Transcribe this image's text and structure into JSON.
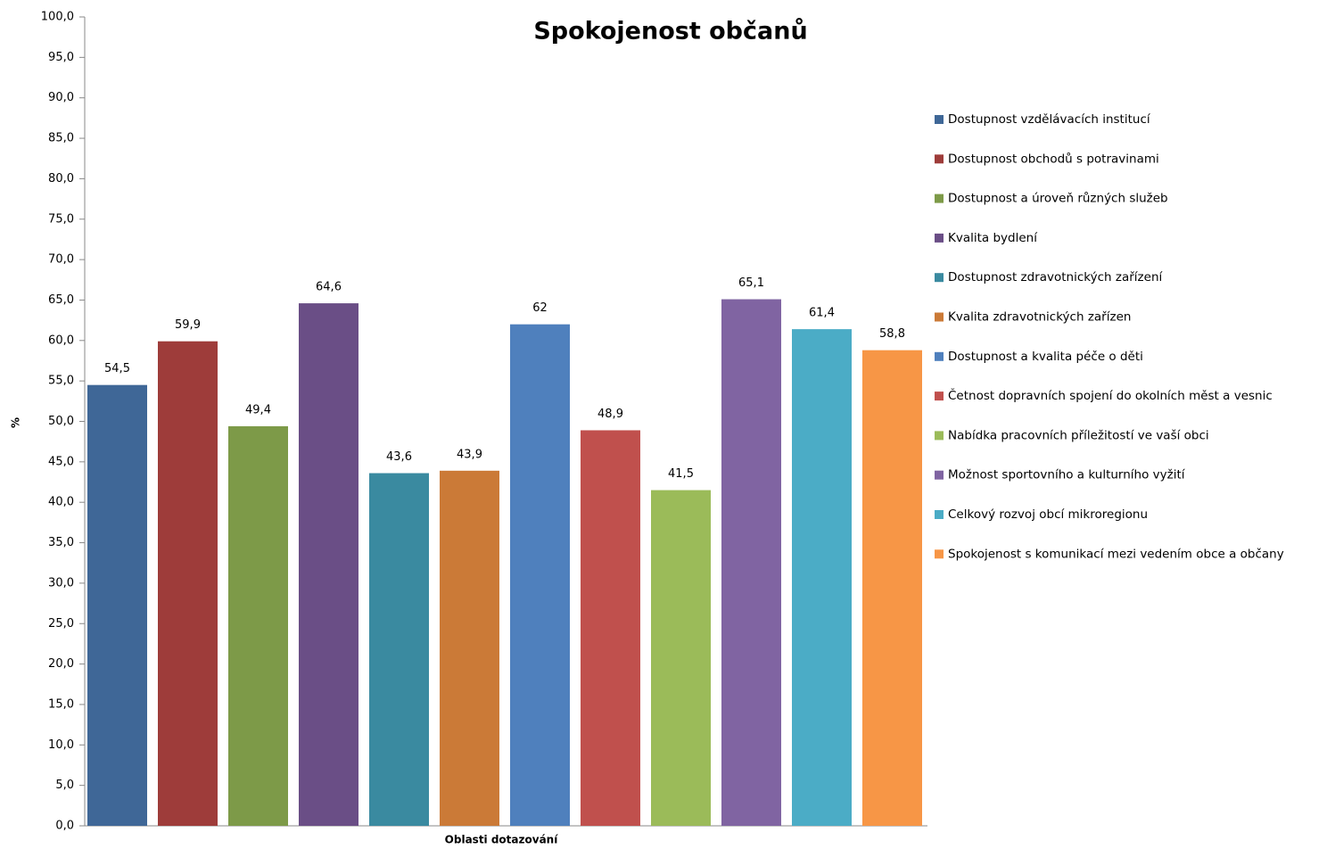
{
  "chart_data": {
    "type": "bar",
    "title": "Spokojenost občanů",
    "x_label": "Oblasti dotazování",
    "y_label": "%",
    "categories": [
      null
    ],
    "ylim": [
      0,
      100
    ],
    "yticks": [
      {
        "value": 0,
        "label": "0,0"
      },
      {
        "value": 5,
        "label": "5,0"
      },
      {
        "value": 10,
        "label": "10,0"
      },
      {
        "value": 15,
        "label": "15,0"
      },
      {
        "value": 20,
        "label": "20,0"
      },
      {
        "value": 25,
        "label": "25,0"
      },
      {
        "value": 30,
        "label": "30,0"
      },
      {
        "value": 35,
        "label": "35,0"
      },
      {
        "value": 40,
        "label": "40,0"
      },
      {
        "value": 45,
        "label": "45,0"
      },
      {
        "value": 50,
        "label": "50,0"
      },
      {
        "value": 55,
        "label": "55,0"
      },
      {
        "value": 60,
        "label": "60,0"
      },
      {
        "value": 65,
        "label": "65,0"
      },
      {
        "value": 70,
        "label": "70,0"
      },
      {
        "value": 75,
        "label": "75,0"
      },
      {
        "value": 80,
        "label": "80,0"
      },
      {
        "value": 85,
        "label": "85,0"
      },
      {
        "value": 90,
        "label": "90,0"
      },
      {
        "value": 95,
        "label": "95,0"
      },
      {
        "value": 100,
        "label": "100,0"
      }
    ],
    "legend": "right",
    "series": [
      {
        "name": "Dostupnost vzdělávacích institucí",
        "color": "#3f6797",
        "values": [
          54.5
        ],
        "value_labels": [
          "54,5"
        ]
      },
      {
        "name": "Dostupnost obchodů s potravinami",
        "color": "#9e3c3a",
        "values": [
          59.9
        ],
        "value_labels": [
          "59,9"
        ]
      },
      {
        "name": "Dostupnost a úroveň různých služeb",
        "color": "#7d9a48",
        "values": [
          49.4
        ],
        "value_labels": [
          "49,4"
        ]
      },
      {
        "name": "Kvalita bydlení",
        "color": "#6a4e86",
        "values": [
          64.6
        ],
        "value_labels": [
          "64,6"
        ]
      },
      {
        "name": "Dostupnost zdravotnických zařízení",
        "color": "#3a8aa0",
        "values": [
          43.6
        ],
        "value_labels": [
          "43,6"
        ]
      },
      {
        "name": "Kvalita zdravotnických zařízen",
        "color": "#cb7a37",
        "values": [
          43.9
        ],
        "value_labels": [
          "43,9"
        ]
      },
      {
        "name": "Dostupnost a kvalita péče o děti",
        "color": "#4f80bd",
        "values": [
          62
        ]
      },
      {
        "name": "Četnost dopravních spojení do okolních měst a vesnic",
        "color": "#c0504d",
        "values": [
          48.9
        ],
        "value_labels": [
          "48,9"
        ]
      },
      {
        "name": "Nabídka pracovních příležitostí ve vaší obci",
        "color": "#9bbb59",
        "values": [
          41.5
        ],
        "value_labels": [
          "41,5"
        ]
      },
      {
        "name": "Možnost sportovního a kulturního vyžití",
        "color": "#8064a2",
        "values": [
          65.1
        ],
        "value_labels": [
          "65,1"
        ]
      },
      {
        "name": "Celkový rozvoj obcí mikroregionu",
        "color": "#4bacc6",
        "values": [
          61.4
        ],
        "value_labels": [
          "61,4"
        ]
      },
      {
        "name": "Spokojenost s komunikací mezi vedením obce a občany",
        "color": "#f79646",
        "values": [
          58.8
        ],
        "value_labels": [
          "58,8"
        ]
      }
    ]
  }
}
